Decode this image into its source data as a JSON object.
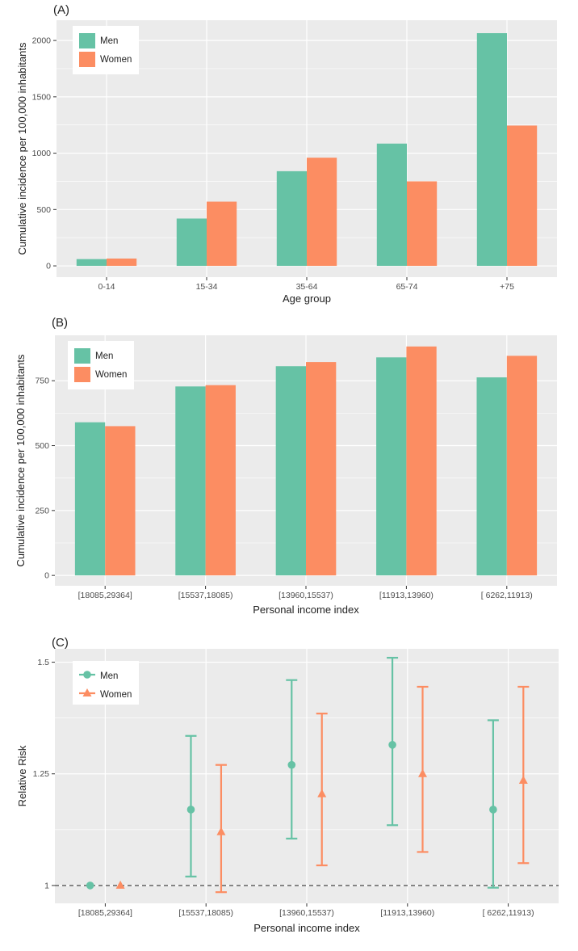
{
  "colors": {
    "men": "#66c2a5",
    "women": "#fc8d62",
    "panel_bg": "#ebebeb",
    "grid": "#ffffff"
  },
  "chart_data": [
    {
      "label": "(A)",
      "type": "bar",
      "xlabel": "Age group",
      "ylabel": "Cumulative incidence per 100,000 inhabitants",
      "categories": [
        "0-14",
        "15-34",
        "35-64",
        "65-74",
        "+75"
      ],
      "ylim": [
        -100,
        2180
      ],
      "yticks": [
        0,
        500,
        1000,
        1500,
        2000
      ],
      "ytick_labels": [
        "0",
        "500",
        "1000",
        "1500",
        "2000"
      ],
      "grid": true,
      "legend_position": "top-left",
      "series": [
        {
          "name": "Men",
          "values": [
            60,
            420,
            840,
            1085,
            2065
          ]
        },
        {
          "name": "Women",
          "values": [
            65,
            570,
            960,
            750,
            1245
          ]
        }
      ]
    },
    {
      "label": "(B)",
      "type": "bar",
      "xlabel": "Personal income index",
      "ylabel": "Cumulative incidence per 100,000 inhabitants",
      "categories": [
        "[18085,29364]",
        "[15537,18085)",
        "[13960,15537)",
        "[11913,13960)",
        "[ 6262,11913)"
      ],
      "ylim": [
        -40,
        925
      ],
      "yticks": [
        0,
        250,
        500,
        750
      ],
      "ytick_labels": [
        "0",
        "250",
        "500",
        "750"
      ],
      "grid": true,
      "legend_position": "top-left",
      "series": [
        {
          "name": "Men",
          "values": [
            590,
            728,
            806,
            840,
            763
          ]
        },
        {
          "name": "Women",
          "values": [
            575,
            733,
            822,
            882,
            846
          ]
        }
      ]
    },
    {
      "label": "(C)",
      "type": "scatter",
      "subtype": "errorbar",
      "xlabel": "Personal income index",
      "ylabel": "Relative Risk",
      "categories": [
        "[18085,29364]",
        "[15537,18085)",
        "[13960,15537)",
        "[11913,13960)",
        "[ 6262,11913)"
      ],
      "ylim": [
        0.96,
        1.53
      ],
      "yticks": [
        1,
        1.25,
        1.5
      ],
      "ytick_labels": [
        "1",
        "1.25",
        "1.5"
      ],
      "reference_line": 1,
      "grid": true,
      "legend_position": "top-left",
      "series": [
        {
          "name": "Men",
          "marker": "circle",
          "values": [
            1.0,
            1.17,
            1.27,
            1.315,
            1.17
          ],
          "lower": [
            null,
            1.02,
            1.105,
            1.135,
            0.995
          ],
          "upper": [
            null,
            1.335,
            1.46,
            1.51,
            1.37
          ]
        },
        {
          "name": "Women",
          "marker": "triangle",
          "values": [
            1.0,
            1.12,
            1.205,
            1.25,
            1.235
          ],
          "lower": [
            null,
            0.985,
            1.045,
            1.075,
            1.05
          ],
          "upper": [
            null,
            1.27,
            1.385,
            1.445,
            1.445
          ]
        }
      ]
    }
  ]
}
